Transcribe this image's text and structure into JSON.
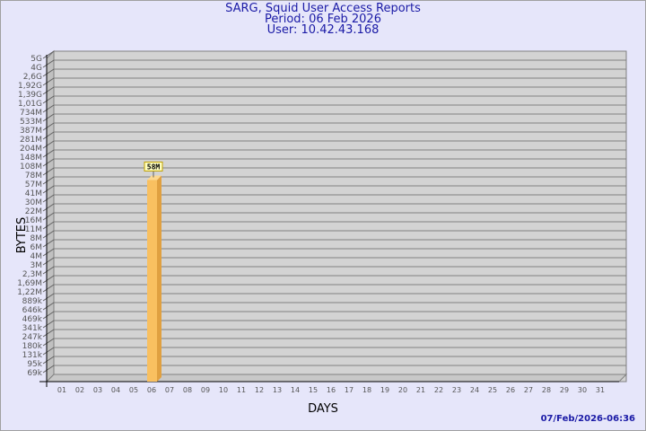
{
  "header": {
    "title": "SARG, Squid User Access Reports",
    "period": "Period: 06 Feb 2026",
    "user": "User: 10.42.43.168"
  },
  "footer": {
    "timestamp": "07/Feb/2026-06:36"
  },
  "chart_data": {
    "type": "bar",
    "title": "SARG, Squid User Access Reports",
    "xlabel": "DAYS",
    "ylabel": "BYTES",
    "yscale": "log",
    "yticks": [
      "5G",
      "4G",
      "2,6G",
      "1,92G",
      "1,39G",
      "1,01G",
      "734M",
      "533M",
      "387M",
      "281M",
      "204M",
      "148M",
      "108M",
      "78M",
      "57M",
      "41M",
      "30M",
      "22M",
      "16M",
      "11M",
      "8M",
      "6M",
      "4M",
      "3M",
      "2,3M",
      "1,69M",
      "1,22M",
      "889k",
      "646k",
      "469k",
      "341k",
      "247k",
      "180k",
      "131k",
      "95k",
      "69k"
    ],
    "categories": [
      "01",
      "02",
      "03",
      "04",
      "05",
      "06",
      "07",
      "08",
      "09",
      "10",
      "11",
      "12",
      "13",
      "14",
      "15",
      "16",
      "17",
      "18",
      "19",
      "20",
      "21",
      "22",
      "23",
      "24",
      "25",
      "26",
      "27",
      "28",
      "29",
      "30",
      "31"
    ],
    "values": {
      "06": 58000000
    },
    "data_labels": {
      "06": "58M"
    },
    "grid": true,
    "colors": {
      "bar": "#f9c060",
      "bar_side": "#e0a040",
      "wall": "#d3d3d3",
      "label_bg": "#ffffc0"
    }
  }
}
